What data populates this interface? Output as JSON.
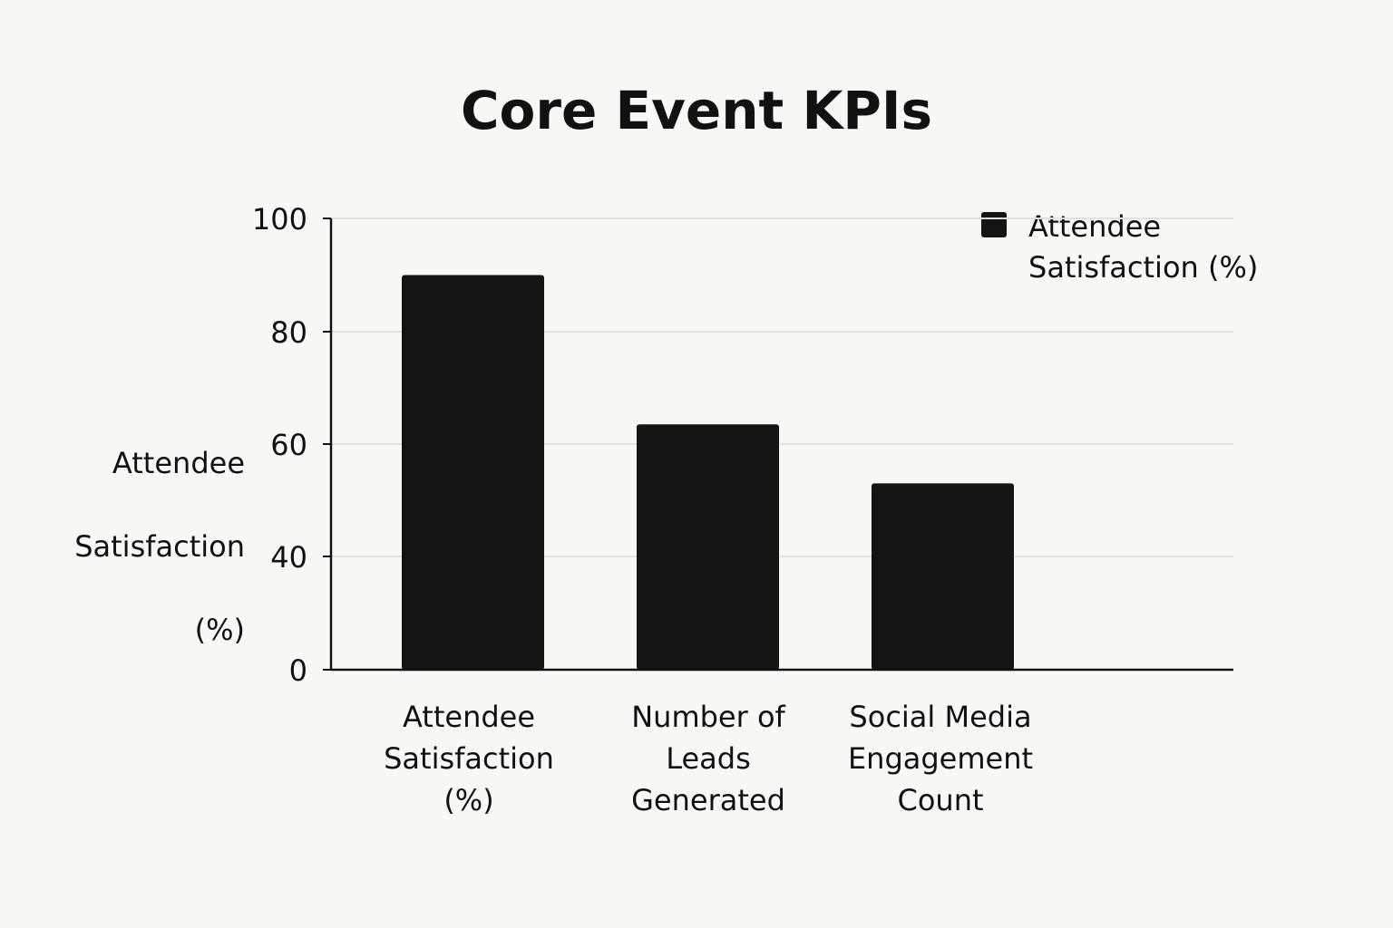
{
  "chart_data": {
    "type": "bar",
    "title": "Core Event KPIs",
    "ylabel": "Attendee Satisfaction (%)",
    "ylabel_lines": [
      "Attendee",
      "Satisfaction",
      "(%)"
    ],
    "xlabel": "",
    "categories": [
      "Attendee Satisfaction (%)",
      "Number of Leads Generated",
      "Social Media Engagement Count"
    ],
    "category_lines": [
      [
        "Attendee",
        "Satisfaction",
        "(%)"
      ],
      [
        "Number of",
        "Leads",
        "Generated"
      ],
      [
        "Social Media",
        "Engagement",
        "Count"
      ]
    ],
    "series": [
      {
        "name": "Attendee Satisfaction (%)",
        "values": [
          90,
          63.5,
          53
        ]
      }
    ],
    "yticks": [
      0,
      40,
      60,
      80,
      100
    ],
    "ylim": [
      0,
      100
    ],
    "grid": true,
    "legend": {
      "placement": "top-right",
      "entries": [
        "Attendee Satisfaction (%)"
      ]
    },
    "colors": {
      "bar": "#141414",
      "grid": "#e2e1dc",
      "axis": "#111111",
      "background": "#f9f8f4"
    }
  }
}
